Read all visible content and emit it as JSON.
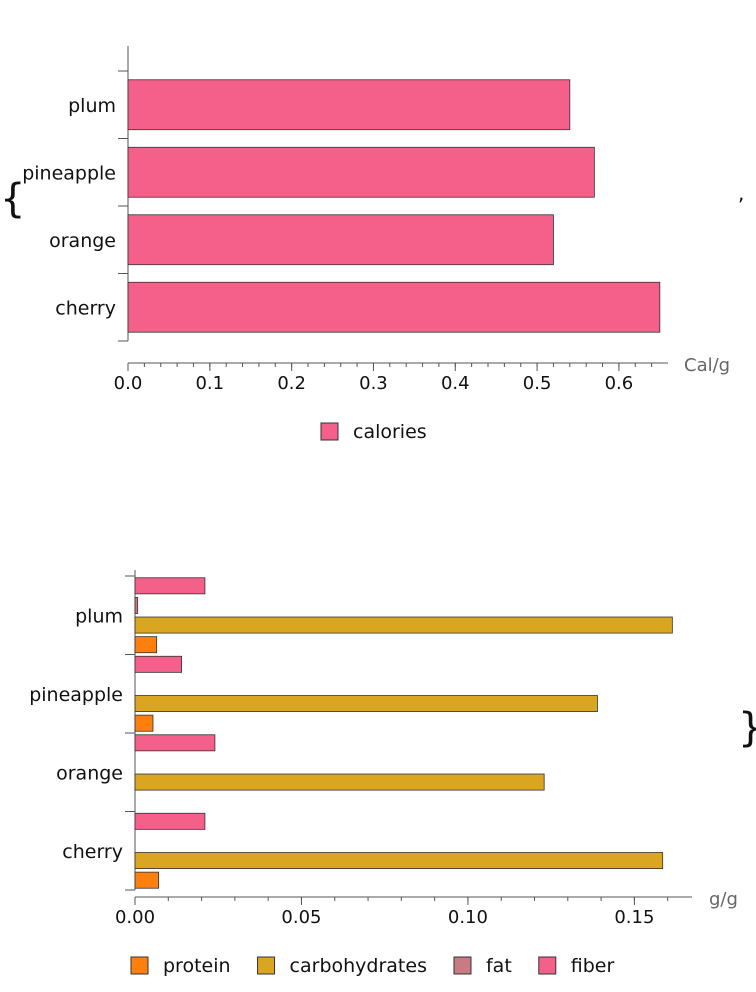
{
  "list_delimiters": {
    "open": "{",
    "separator": ",",
    "close": "}"
  },
  "chart_data": [
    {
      "type": "bar",
      "orientation": "horizontal",
      "categories": [
        "plum",
        "pineapple",
        "orange",
        "cherry"
      ],
      "series": [
        {
          "name": "calories",
          "color": "#f46089",
          "values": [
            0.54,
            0.57,
            0.52,
            0.65
          ]
        }
      ],
      "xlim": [
        0,
        0.66
      ],
      "xticks": [
        "0.0",
        "0.1",
        "0.2",
        "0.3",
        "0.4",
        "0.5",
        "0.6"
      ],
      "xtick_values": [
        0,
        0.1,
        0.2,
        0.3,
        0.4,
        0.5,
        0.6
      ],
      "unit_label": "Cal/g",
      "legend_position": "bottom"
    },
    {
      "type": "bar",
      "orientation": "horizontal",
      "categories": [
        "plum",
        "pineapple",
        "orange",
        "cherry"
      ],
      "series": [
        {
          "name": "protein",
          "color": "#ff7f0e",
          "values": [
            0.0065,
            0.0054,
            0.0,
            0.0071
          ]
        },
        {
          "name": "carbohydrates",
          "color": "#daa520",
          "values": [
            0.1614,
            0.1389,
            0.1229,
            0.1585
          ]
        },
        {
          "name": "fat",
          "color": "#c97b84",
          "values": [
            0.0008,
            0.0,
            0.0,
            0.0
          ]
        },
        {
          "name": "fiber",
          "color": "#f46089",
          "values": [
            0.021,
            0.014,
            0.024,
            0.021
          ]
        }
      ],
      "xlim": [
        0,
        0.164
      ],
      "xticks": [
        "0.00",
        "0.05",
        "0.10",
        "0.15"
      ],
      "xtick_values": [
        0,
        0.05,
        0.1,
        0.15
      ],
      "unit_label": "g/g",
      "legend_position": "bottom"
    }
  ]
}
